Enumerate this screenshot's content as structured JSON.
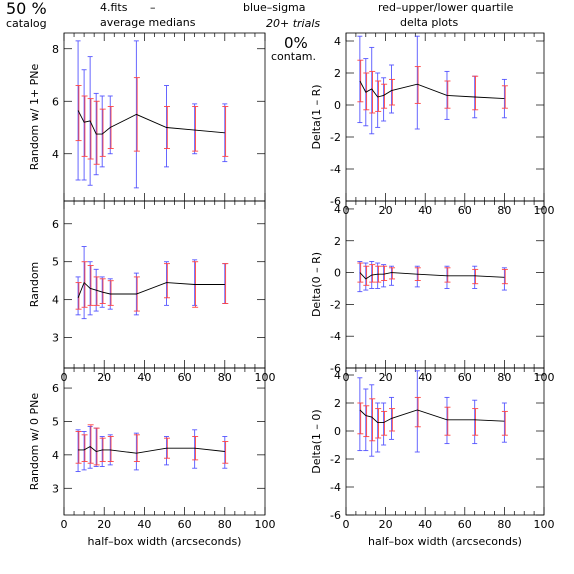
{
  "header": {
    "percent": "50 %",
    "catalog": "catalog",
    "file": "4.fits",
    "dash": "–",
    "medians": "average medians",
    "sigma": "blue–sigma",
    "quartile": "red–upper/lower quartile",
    "trials": "20+ trials",
    "delta_title": "delta plots",
    "contam_value": "0%",
    "contam_label": "contam."
  },
  "colors": {
    "sigma": "#5555ff",
    "quartile": "#ff4444",
    "median_line": "#000000"
  },
  "chart_data": [
    {
      "type": "line",
      "ylabel": "Random w/ 1+ PNe",
      "xlim": [
        0,
        100
      ],
      "ylim": [
        2.2,
        8.6
      ],
      "yticks": [
        4,
        6,
        8
      ],
      "show_xtick_labels": false,
      "x": [
        7,
        10,
        13,
        16,
        19,
        23,
        36,
        51,
        65,
        80
      ],
      "values": [
        5.65,
        5.2,
        5.25,
        4.75,
        4.75,
        5.0,
        5.5,
        5.0,
        4.9,
        4.8
      ],
      "sigma_low": [
        3.0,
        3.0,
        2.8,
        3.2,
        3.5,
        4.0,
        2.7,
        3.5,
        4.0,
        3.7
      ],
      "sigma_high": [
        8.3,
        7.2,
        7.7,
        6.3,
        6.2,
        6.2,
        8.3,
        6.6,
        5.9,
        5.9
      ],
      "q_low": [
        4.5,
        3.9,
        3.8,
        3.6,
        3.9,
        4.2,
        4.1,
        4.2,
        4.1,
        3.9
      ],
      "q_high": [
        6.6,
        6.2,
        6.1,
        6.0,
        5.7,
        5.8,
        6.9,
        5.8,
        5.8,
        5.8
      ]
    },
    {
      "type": "line",
      "ylabel": "Delta(1 – R)",
      "xlim": [
        0,
        100
      ],
      "ylim": [
        -6,
        4.5
      ],
      "yticks": [
        -6,
        -4,
        -2,
        0,
        2,
        4
      ],
      "show_xtick_labels": true,
      "x": [
        7,
        10,
        13,
        16,
        19,
        23,
        36,
        51,
        65,
        80
      ],
      "values": [
        1.5,
        0.8,
        1.0,
        0.5,
        0.6,
        0.9,
        1.3,
        0.6,
        0.5,
        0.4
      ],
      "sigma_low": [
        -1.1,
        -1.3,
        -1.8,
        -1.4,
        -1.0,
        -0.5,
        -1.5,
        -0.9,
        -0.8,
        -0.8
      ],
      "sigma_high": [
        4.3,
        2.9,
        3.6,
        2.0,
        1.7,
        2.5,
        4.3,
        2.1,
        1.8,
        1.6
      ],
      "q_low": [
        0.2,
        -0.3,
        -0.5,
        -0.4,
        -0.2,
        0.0,
        0.1,
        -0.2,
        -0.3,
        -0.2
      ],
      "q_high": [
        2.8,
        2.0,
        2.1,
        1.5,
        1.3,
        1.6,
        2.4,
        1.5,
        1.8,
        1.2
      ]
    },
    {
      "type": "line",
      "ylabel": "Random",
      "xlim": [
        0,
        100
      ],
      "ylim": [
        2.2,
        6.6
      ],
      "yticks": [
        3,
        4,
        5,
        6
      ],
      "show_xtick_labels": true,
      "x": [
        7,
        10,
        13,
        16,
        19,
        23,
        36,
        51,
        65,
        80
      ],
      "values": [
        4.05,
        4.45,
        4.3,
        4.25,
        4.2,
        4.15,
        4.15,
        4.45,
        4.4,
        4.4
      ],
      "sigma_low": [
        3.6,
        3.5,
        3.6,
        3.7,
        3.8,
        3.75,
        3.6,
        3.85,
        3.85,
        3.9
      ],
      "sigma_high": [
        4.6,
        5.4,
        5.0,
        4.8,
        4.6,
        4.55,
        4.7,
        5.0,
        5.05,
        4.95
      ],
      "q_low": [
        3.75,
        3.8,
        3.85,
        3.85,
        3.9,
        3.85,
        3.7,
        4.05,
        3.8,
        3.9
      ],
      "q_high": [
        4.45,
        5.0,
        4.9,
        4.6,
        4.55,
        4.5,
        4.6,
        4.95,
        5.0,
        4.95
      ]
    },
    {
      "type": "line",
      "ylabel": "Delta(0 – R)",
      "xlim": [
        0,
        100
      ],
      "ylim": [
        -6,
        4.5
      ],
      "yticks": [
        -6,
        -4,
        -2,
        0,
        2,
        4
      ],
      "show_xtick_labels": true,
      "x": [
        7,
        10,
        13,
        16,
        19,
        23,
        36,
        51,
        65,
        80
      ],
      "values": [
        0.0,
        -0.4,
        -0.15,
        -0.1,
        -0.1,
        0.0,
        -0.1,
        -0.2,
        -0.2,
        -0.3
      ],
      "sigma_low": [
        -1.2,
        -1.1,
        -1.0,
        -1.0,
        -0.9,
        -0.8,
        -0.9,
        -1.0,
        -1.0,
        -1.1
      ],
      "sigma_high": [
        0.7,
        0.6,
        0.7,
        0.6,
        0.5,
        0.4,
        0.4,
        0.4,
        0.4,
        0.3
      ],
      "q_low": [
        -0.6,
        -0.8,
        -0.6,
        -0.6,
        -0.5,
        -0.4,
        -0.5,
        -0.6,
        -0.7,
        -0.7
      ],
      "q_high": [
        0.6,
        0.4,
        0.5,
        0.4,
        0.4,
        0.3,
        0.3,
        0.3,
        0.2,
        0.2
      ]
    },
    {
      "type": "line",
      "ylabel": "Random w/ 0 PNe",
      "xlim": [
        0,
        100
      ],
      "ylim": [
        2.2,
        6.6
      ],
      "yticks": [
        3,
        4,
        5,
        6
      ],
      "show_xtick_labels": true,
      "xlabel": "half–box width (arcseconds)",
      "x": [
        7,
        10,
        13,
        16,
        19,
        23,
        36,
        51,
        65,
        80
      ],
      "values": [
        4.15,
        4.15,
        4.25,
        4.1,
        4.15,
        4.15,
        4.05,
        4.2,
        4.2,
        4.1
      ],
      "sigma_low": [
        3.5,
        3.55,
        3.6,
        3.65,
        3.65,
        3.7,
        3.55,
        3.7,
        3.6,
        3.6
      ],
      "sigma_high": [
        4.75,
        4.7,
        4.85,
        4.8,
        4.55,
        4.6,
        4.65,
        4.55,
        4.75,
        4.55
      ],
      "q_low": [
        3.75,
        3.8,
        3.75,
        3.7,
        3.8,
        3.8,
        3.8,
        3.9,
        3.85,
        3.75
      ],
      "q_high": [
        4.7,
        4.6,
        4.9,
        4.8,
        4.5,
        4.55,
        4.6,
        4.5,
        4.55,
        4.4
      ]
    },
    {
      "type": "line",
      "ylabel": "Delta(1 – 0)",
      "xlim": [
        0,
        100
      ],
      "ylim": [
        -6,
        4.5
      ],
      "yticks": [
        -6,
        -4,
        -2,
        0,
        2,
        4
      ],
      "show_xtick_labels": true,
      "xlabel": "half–box width (arcseconds)",
      "x": [
        7,
        10,
        13,
        16,
        19,
        23,
        36,
        51,
        65,
        80
      ],
      "values": [
        1.5,
        1.1,
        1.0,
        0.6,
        0.6,
        0.9,
        1.5,
        0.8,
        0.8,
        0.7
      ],
      "sigma_low": [
        -1.4,
        -1.4,
        -1.8,
        -1.5,
        -1.0,
        -0.6,
        -1.5,
        -0.9,
        -0.9,
        -0.8
      ],
      "sigma_high": [
        3.8,
        3.0,
        3.3,
        2.0,
        2.0,
        2.4,
        4.3,
        2.4,
        2.2,
        2.0
      ],
      "q_low": [
        -0.2,
        -0.4,
        -0.7,
        -0.5,
        -0.3,
        0.0,
        0.3,
        -0.3,
        -0.3,
        -0.3
      ],
      "q_high": [
        2.0,
        1.8,
        2.3,
        1.6,
        1.4,
        1.6,
        2.4,
        1.7,
        1.6,
        1.4
      ]
    }
  ]
}
